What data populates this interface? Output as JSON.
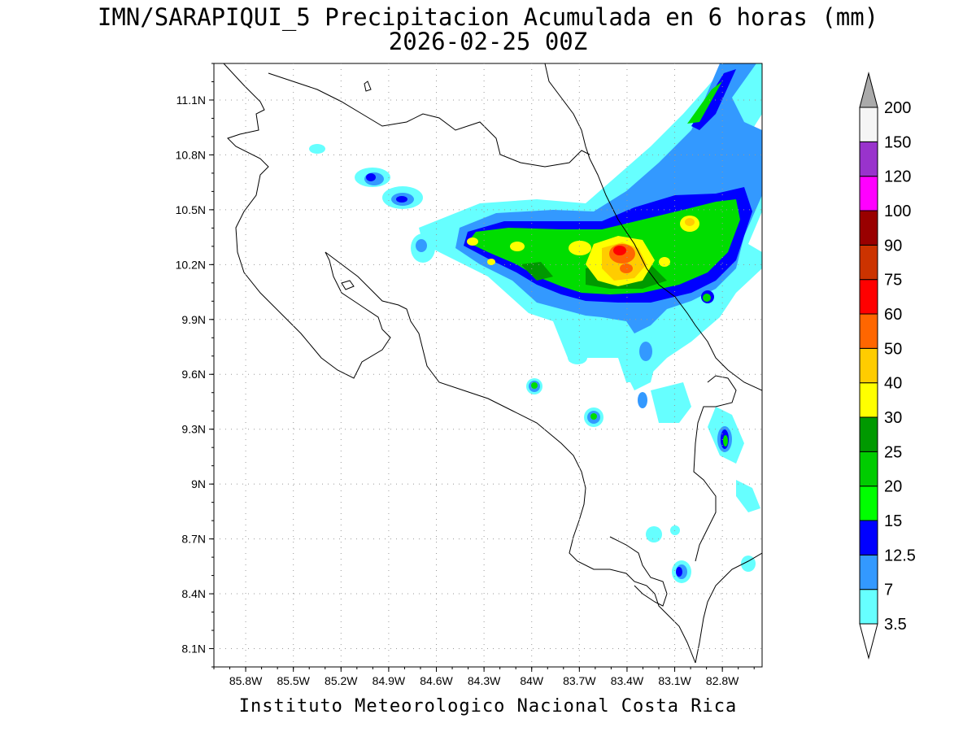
{
  "title_line1": "IMN/SARAPIQUI_5 Precipitacion Acumulada en 6 horas (mm)",
  "title_line2": "2026-02-25 00Z",
  "footer": "Instituto Meteorologico Nacional Costa Rica",
  "map": {
    "lon_range": [
      -86.0,
      -82.55
    ],
    "lat_range": [
      8.0,
      11.3
    ],
    "lon_tick_labels": [
      "85.8W",
      "85.5W",
      "85.2W",
      "84.9W",
      "84.6W",
      "84.3W",
      "84W",
      "83.7W",
      "83.4W",
      "83.1W",
      "82.8W"
    ],
    "lat_tick_labels": [
      "11.1N",
      "10.8N",
      "10.5N",
      "10.2N",
      "9.9N",
      "9.6N",
      "9.3N",
      "9N",
      "8.7N",
      "8.4N",
      "8.1N"
    ],
    "grid_lines": "dotted"
  },
  "colorbar": {
    "labels": [
      "3.5",
      "7",
      "12.5",
      "15",
      "20",
      "25",
      "30",
      "40",
      "50",
      "60",
      "75",
      "90",
      "100",
      "120",
      "150",
      "200"
    ],
    "colors": [
      "#66ffff",
      "#3399ff",
      "#0000ff",
      "#00ff00",
      "#00cc00",
      "#009900",
      "#ffff00",
      "#ffcc00",
      "#ff6600",
      "#ff0000",
      "#cc3300",
      "#990000",
      "#ff00ff",
      "#9933cc",
      "#f5f5f5",
      "#aaaaaa"
    ],
    "extend_colors": {
      "below": "#ffffff",
      "above": "#aaaaaa"
    }
  },
  "precip_colors": {
    "c3_5": "#66ffff",
    "c7": "#3399ff",
    "c12_5": "#0000ff",
    "c15": "#00ff00",
    "c20": "#00cc00",
    "c25": "#009900",
    "c30": "#ffff00",
    "c40": "#ffcc00",
    "c50": "#ff6600",
    "c60": "#ff0000"
  }
}
